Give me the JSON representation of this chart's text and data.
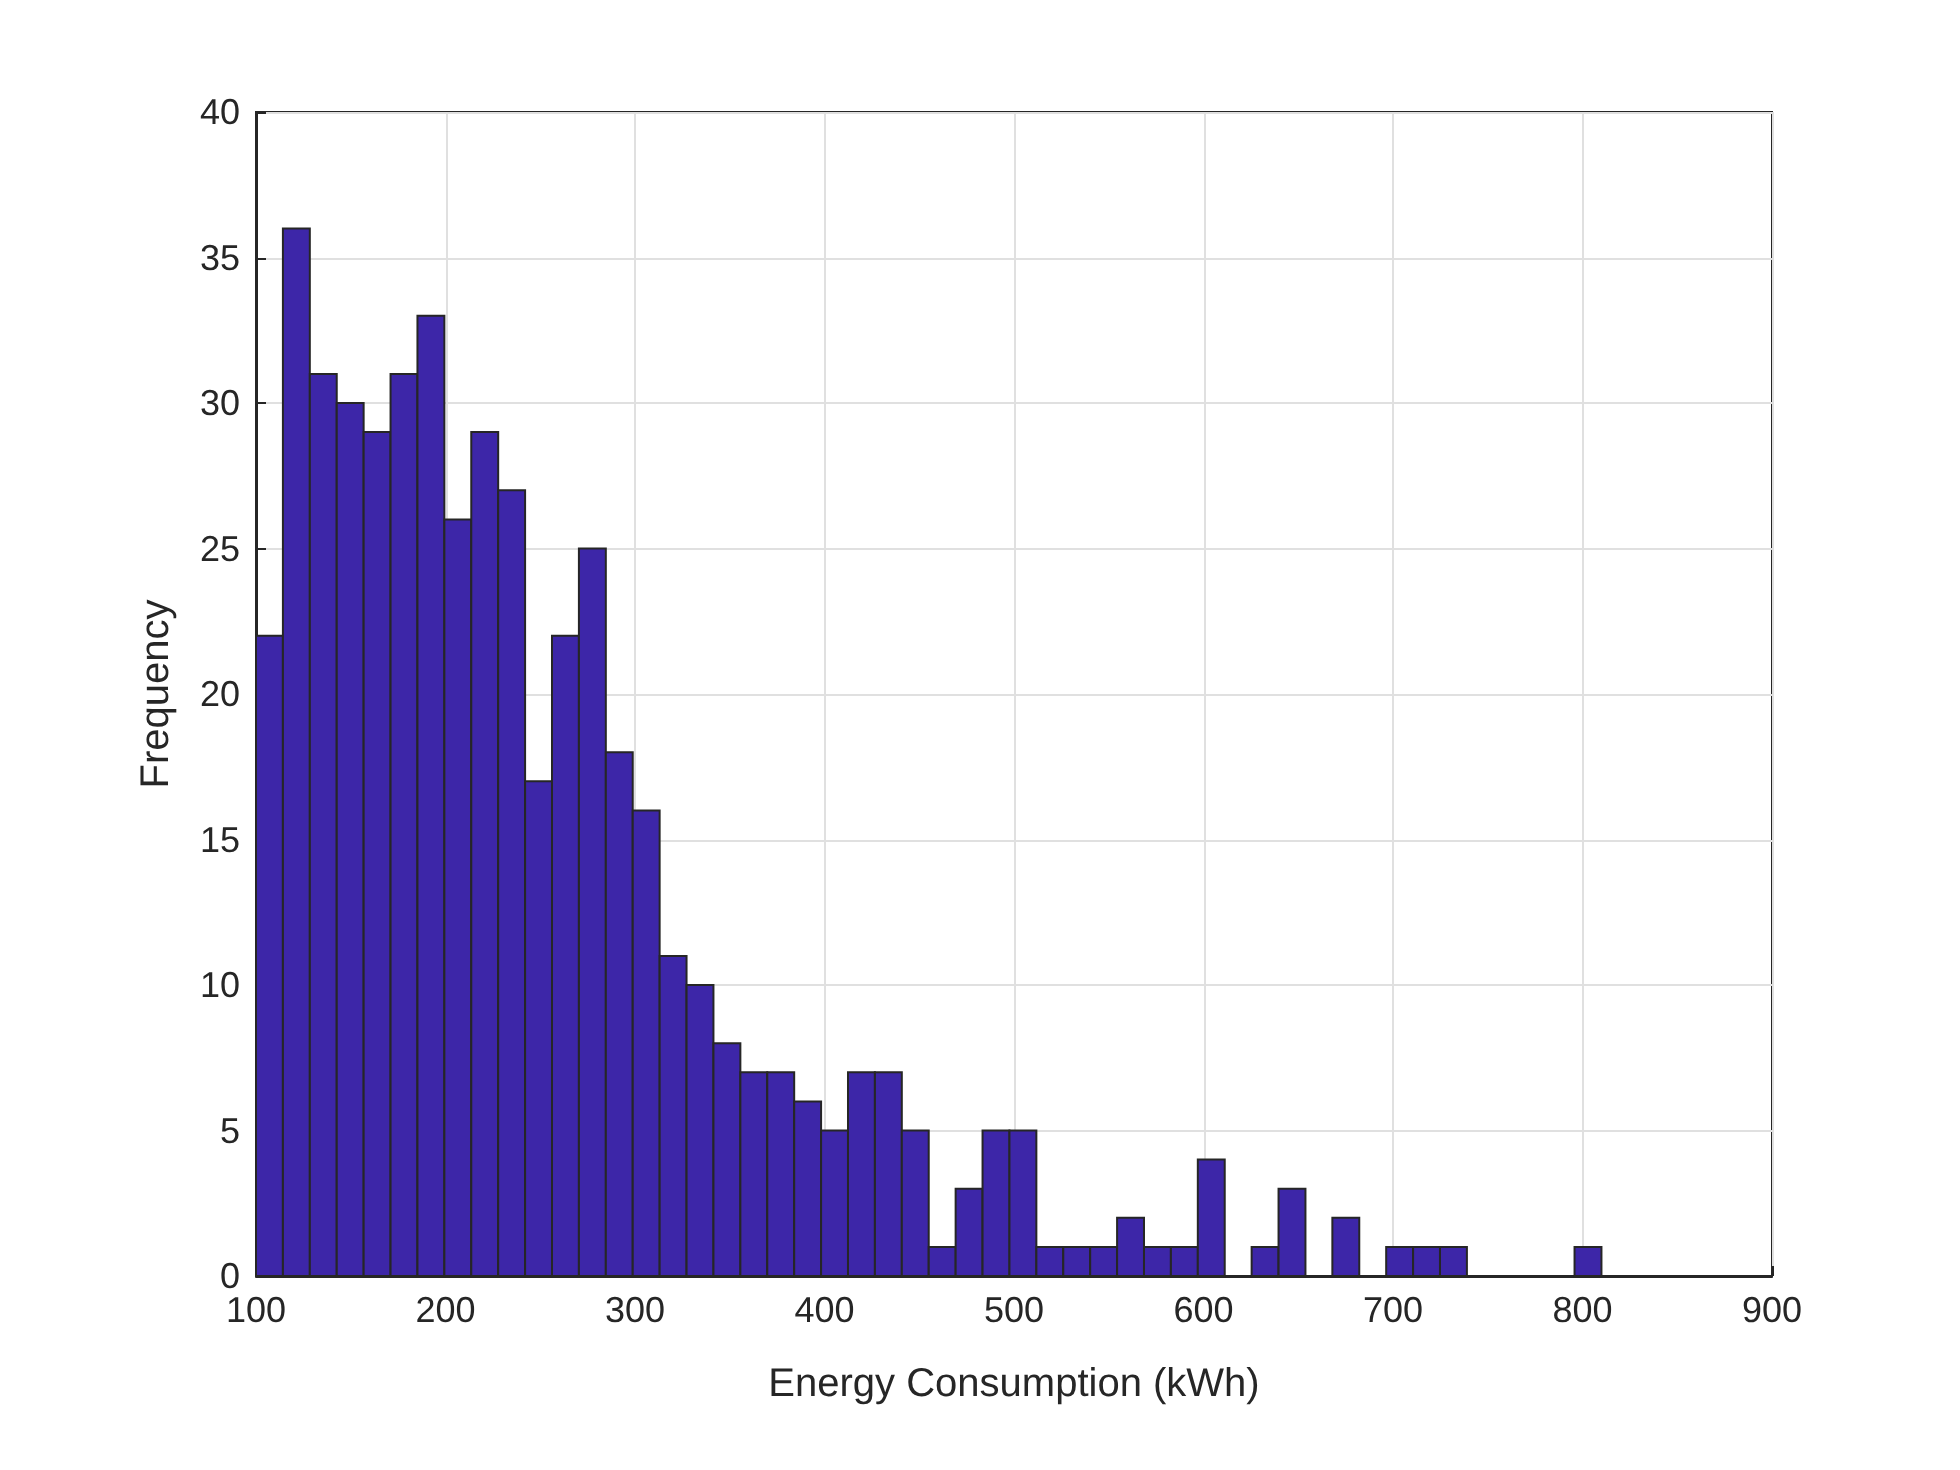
{
  "chart_data": {
    "type": "histogram",
    "xlabel": "Energy Consumption (kWh)",
    "ylabel": "Frequency",
    "color": "#3d26a8",
    "bins": [
      100,
      114.2,
      128.4,
      142.6,
      156.8,
      171,
      185.2,
      199.4,
      213.6,
      227.8,
      242,
      256.2,
      270.4,
      284.6,
      298.8,
      313,
      327.2,
      341.4,
      355.6,
      369.8,
      384,
      398.2,
      412.4,
      426.6,
      440.8,
      455,
      469.2,
      483.4,
      497.6,
      511.8,
      526,
      540.2,
      554.4,
      568.6,
      582.8,
      597,
      611.2,
      625.4,
      639.6,
      653.8,
      668,
      682.2,
      696.4,
      710.6,
      724.8,
      739,
      753.2,
      767.4,
      781.6,
      795.8,
      810
    ],
    "values": [
      22,
      36,
      31,
      30,
      29,
      31,
      33,
      26,
      29,
      27,
      17,
      22,
      25,
      18,
      16,
      11,
      10,
      8,
      7,
      7,
      6,
      5,
      7,
      7,
      5,
      1,
      3,
      5,
      5,
      1,
      1,
      1,
      2,
      1,
      1,
      4,
      0,
      1,
      3,
      0,
      2,
      0,
      1,
      1,
      1,
      0,
      0,
      0,
      0,
      1
    ],
    "xlim": [
      100,
      900
    ],
    "xticks": [
      100,
      200,
      300,
      400,
      500,
      600,
      700,
      800,
      900
    ],
    "ylim": [
      0,
      40
    ],
    "yticks": [
      0,
      5,
      10,
      15,
      20,
      25,
      30,
      35,
      40
    ],
    "grid": true
  }
}
